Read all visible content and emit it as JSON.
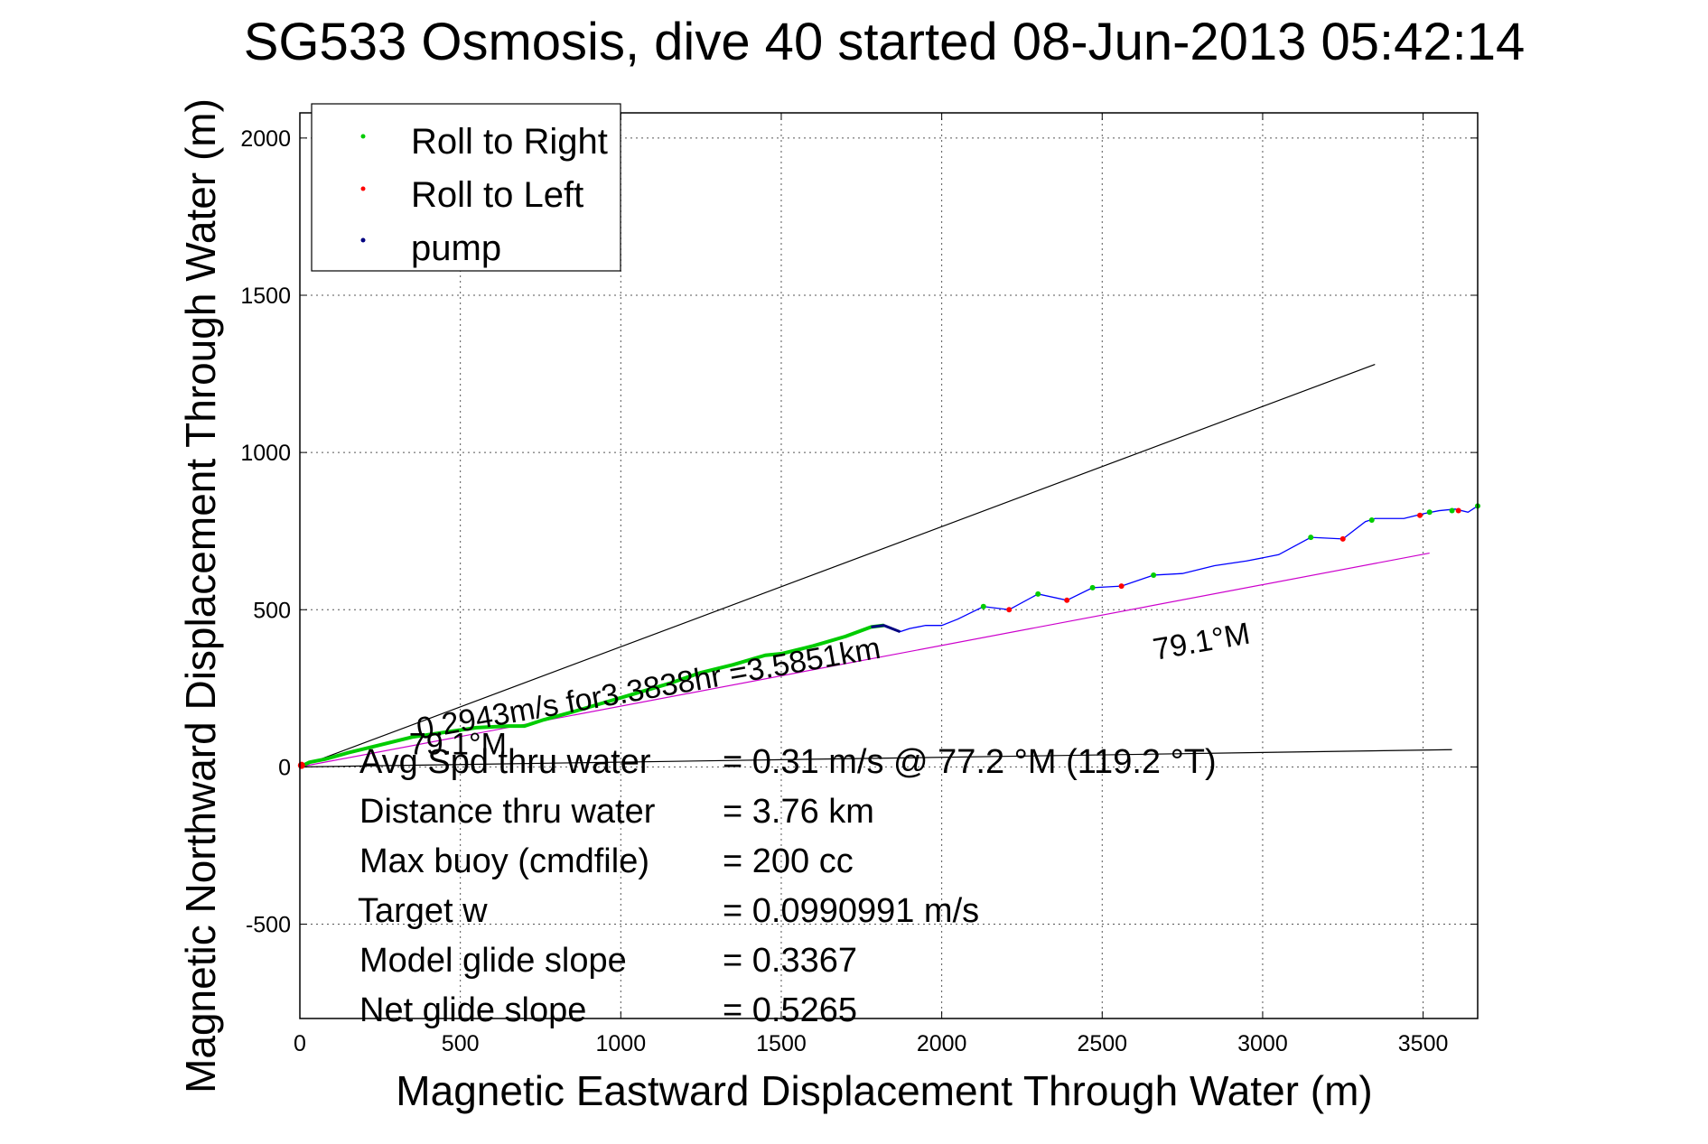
{
  "chart_data": {
    "type": "line",
    "title": "SG533 Osmosis, dive 40 started 08-Jun-2013 05:42:14",
    "xlabel": "Magnetic Eastward Displacement Through Water (m)",
    "ylabel": "Magnetic Northward Displacement Through Water (m)",
    "xlim": [
      0,
      3670
    ],
    "ylim": [
      -800,
      2080
    ],
    "xticks": [
      0,
      500,
      1000,
      1500,
      2000,
      2500,
      3000,
      3500
    ],
    "yticks": [
      -500,
      0,
      500,
      1000,
      1500,
      2000
    ],
    "grid": true,
    "legend_position": "top-left",
    "legend": [
      {
        "label": "Roll to Right",
        "color": "#00cc00"
      },
      {
        "label": "Roll to Left",
        "color": "#ff0000"
      },
      {
        "label": "pump",
        "color": "#000080"
      }
    ],
    "track": {
      "color": "#0000ff",
      "x": [
        0,
        30,
        80,
        150,
        250,
        350,
        450,
        550,
        650,
        700,
        760,
        850,
        950,
        1050,
        1150,
        1250,
        1350,
        1450,
        1500,
        1600,
        1700,
        1780,
        1820,
        1870,
        1900,
        1950,
        2000,
        2050,
        2130,
        2210,
        2300,
        2390,
        2470,
        2560,
        2660,
        2750,
        2850,
        2950,
        3050,
        3150,
        3250,
        3320,
        3350,
        3440,
        3500,
        3550,
        3600,
        3640,
        3670
      ],
      "y": [
        0,
        15,
        25,
        45,
        70,
        95,
        110,
        125,
        130,
        130,
        150,
        175,
        205,
        235,
        265,
        300,
        325,
        355,
        360,
        385,
        415,
        445,
        450,
        430,
        440,
        450,
        450,
        470,
        510,
        500,
        550,
        530,
        570,
        575,
        610,
        615,
        640,
        655,
        675,
        730,
        725,
        780,
        790,
        790,
        805,
        815,
        820,
        810,
        830
      ]
    },
    "roll_right_points": {
      "x": [
        2130,
        2300,
        2470,
        2660,
        3150,
        3340,
        3520,
        3590,
        3670
      ],
      "y": [
        510,
        550,
        570,
        610,
        730,
        785,
        810,
        815,
        830
      ]
    },
    "roll_left_points": {
      "x": [
        2210,
        2390,
        2560,
        3250,
        3490,
        3610
      ],
      "y": [
        500,
        530,
        575,
        725,
        800,
        815
      ]
    },
    "reference_lines": [
      {
        "name": "",
        "color": "#000000",
        "x": [
          0,
          3350
        ],
        "y": [
          0,
          1280
        ]
      },
      {
        "name": "",
        "color": "#cc00cc",
        "x": [
          0,
          3520
        ],
        "y": [
          0,
          680
        ]
      },
      {
        "name": "",
        "color": "#000000",
        "x": [
          0,
          3590
        ],
        "y": [
          0,
          55
        ]
      }
    ],
    "annotations": [
      {
        "text": "0.2943m/s for3.3838hr =3.5851km",
        "x": 370,
        "y": 88,
        "rotation_deg": -10
      },
      {
        "text": "79.1°M",
        "x": 2665,
        "y": 340,
        "rotation_deg": -10
      },
      {
        "text": "79.1°M",
        "x": 340,
        "y": 40,
        "rotation_deg": 0
      }
    ]
  },
  "stats": [
    {
      "label": "Avg Spd thru water",
      "value": "=  0.31 m/s @  77.2 °M (119.2 °T)"
    },
    {
      "label": "Distance thru water",
      "value": "=  3.76 km"
    },
    {
      "label": "Max buoy (cmdfile)",
      "value": "= 200 cc"
    },
    {
      "label": "Target w",
      "value": "= 0.0990991 m/s"
    },
    {
      "label": "Model glide slope",
      "value": "= 0.3367"
    },
    {
      "label": "Net glide slope",
      "value": "= 0.5265"
    }
  ]
}
